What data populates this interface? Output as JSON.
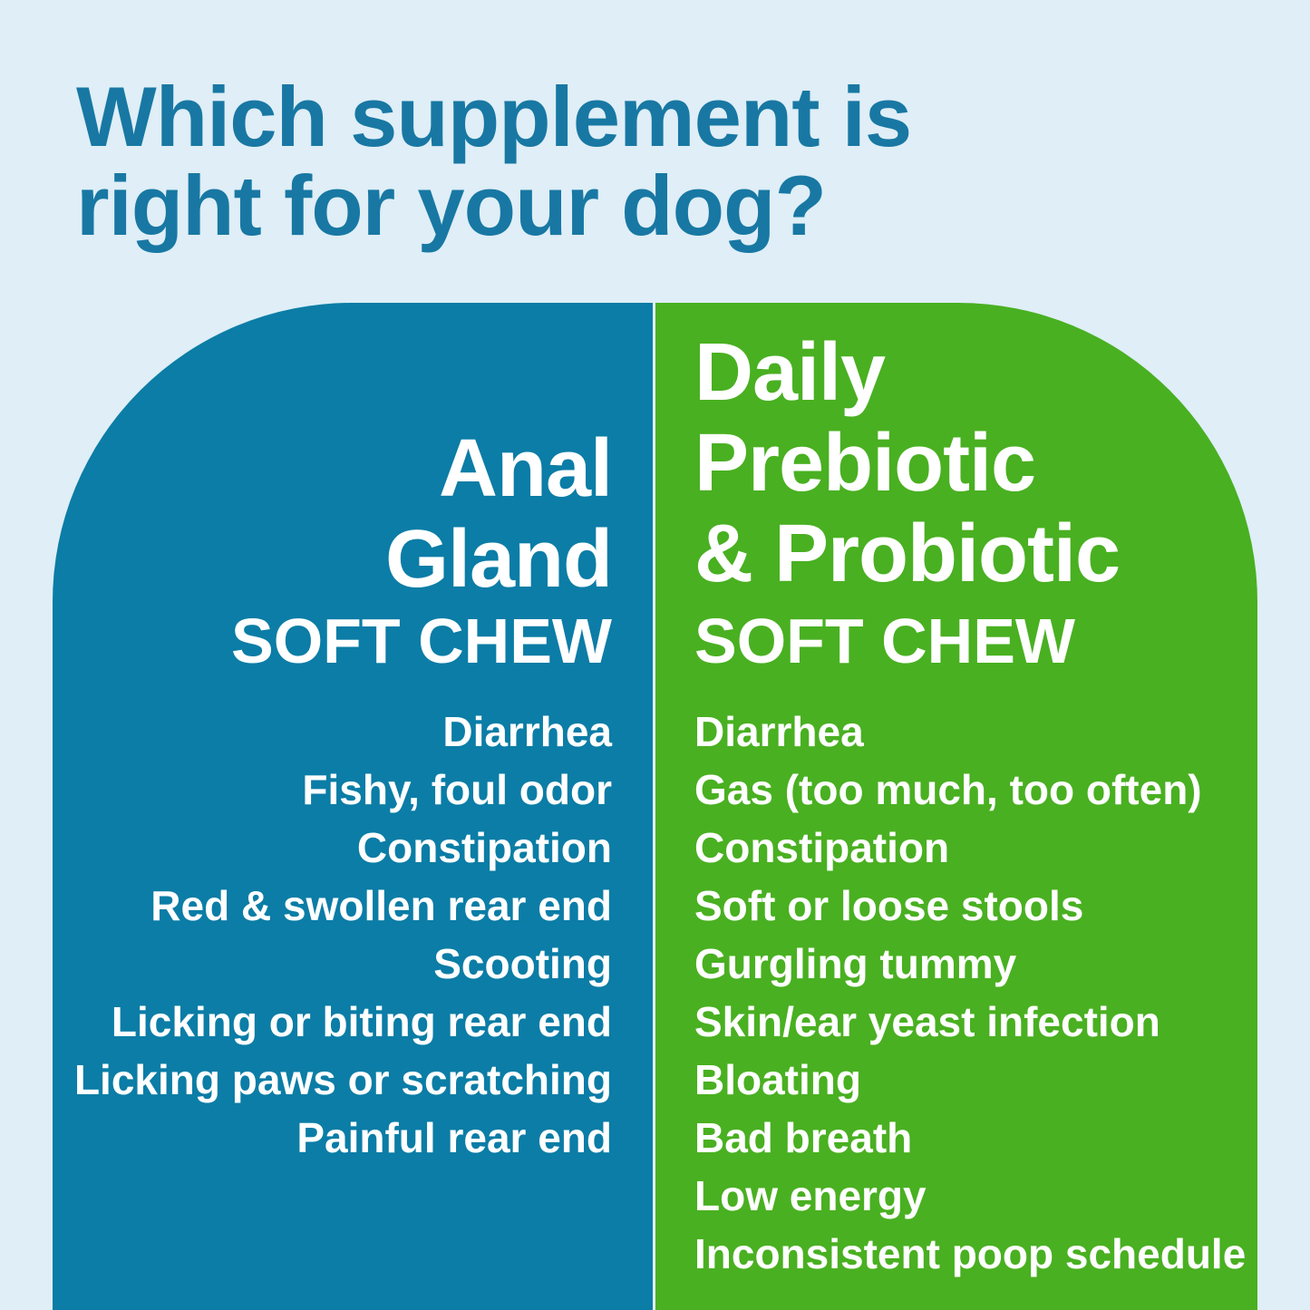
{
  "title": {
    "line1": "Which supplement is",
    "line2": "right for your dog?"
  },
  "left_panel": {
    "product_lines": [
      "Anal",
      "Gland"
    ],
    "format_label": "SOFT CHEW",
    "symptoms": [
      "Diarrhea",
      "Fishy, foul odor",
      "Constipation",
      "Red & swollen rear end",
      "Scooting",
      "Licking or biting rear end",
      "Licking paws or scratching",
      "Painful rear end"
    ]
  },
  "right_panel": {
    "product_lines": [
      "Daily",
      "Prebiotic",
      "& Probiotic"
    ],
    "format_label": "SOFT CHEW",
    "symptoms": [
      "Diarrhea",
      "Gas (too much, too often)",
      "Constipation",
      "Soft or loose stools",
      "Gurgling tummy",
      "Skin/ear yeast infection",
      "Bloating",
      "Bad breath",
      "Low energy",
      "Inconsistent poop schedule"
    ]
  },
  "colors": {
    "background": "#dfeef7",
    "title_color": "#1878a3",
    "blue_panel": "#0b7da6",
    "green_panel": "#49b021",
    "panel_text": "#ffffff"
  }
}
